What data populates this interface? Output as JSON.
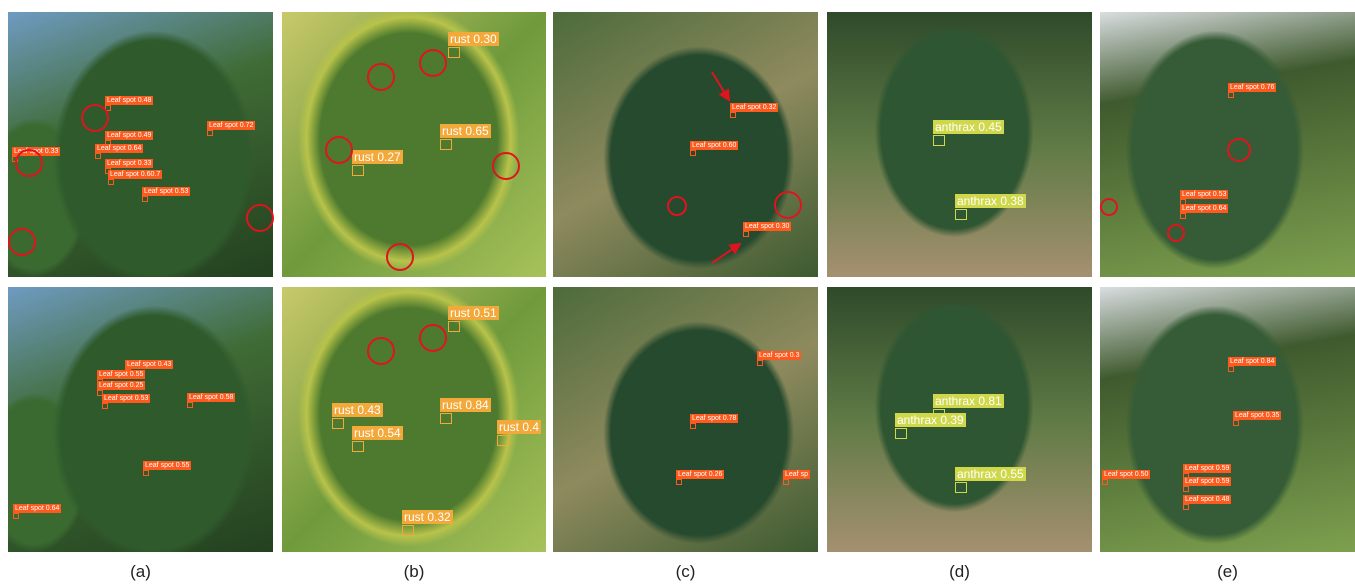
{
  "panels": [
    {
      "caption": "(a)",
      "top": [
        "Leaf spot 0.48",
        "Leaf spot 0.49",
        "Leaf spot 0.72",
        "Leaf spot 0.33",
        "Leaf spot 0.64",
        "Leaf spot 0.33",
        "Leaf spot 0.60.7",
        "Leaf spot 0.53"
      ],
      "bottom": [
        "Leaf spot 0.43",
        "Leaf spot 0.55",
        "Leaf spot 0.25",
        "Leaf spot 0.53",
        "Leaf spot 0.58",
        "Leaf spot 0.55",
        "Leaf spot 0.64"
      ]
    },
    {
      "caption": "(b)",
      "top": [
        "rust 0.30",
        "rust 0.65",
        "rust 0.27"
      ],
      "bottom": [
        "rust 0.51",
        "rust 0.43",
        "rust 0.54",
        "rust 0.84",
        "rust 0.32",
        "rust 0.4"
      ]
    },
    {
      "caption": "(c)",
      "top": [
        "Leaf spot 0.32",
        "Leaf spot 0.60",
        "Leaf spot 0.30"
      ],
      "bottom": [
        "Leaf spot 0.3",
        "Leaf spot 0.78",
        "Leaf spot 0.26",
        "Leaf sp"
      ]
    },
    {
      "caption": "(d)",
      "top": [
        "anthrax 0.45",
        "anthrax 0.38"
      ],
      "bottom": [
        "anthrax 0.81",
        "anthrax 0.39",
        "anthrax 0.55"
      ]
    },
    {
      "caption": "(e)",
      "top": [
        "Leaf spot 0.76",
        "Leaf spot 0.53",
        "Leaf spot 0.64"
      ],
      "bottom": [
        "Leaf spot 0.84",
        "Leaf spot 0.35",
        "Leaf spot 0.50",
        "Leaf spot 0.59",
        "Leaf spot 0.59",
        "Leaf spot 0.48"
      ]
    }
  ]
}
